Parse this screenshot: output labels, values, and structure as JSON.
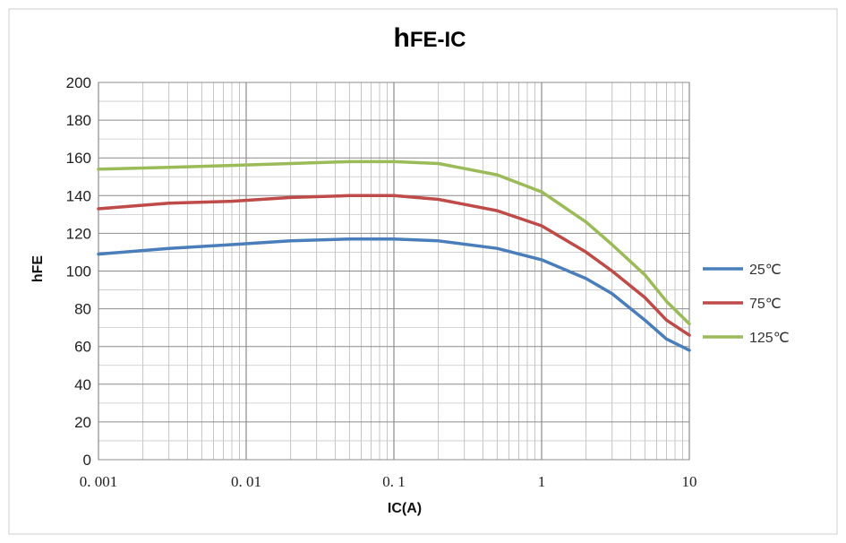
{
  "chart_data": {
    "type": "line",
    "title": "hFE-IC",
    "title_main": "h",
    "title_sub": "FE-IC",
    "xlabel": "IC(A)",
    "ylabel": "hFE",
    "x_scale": "log",
    "xlim": [
      0.001,
      10
    ],
    "ylim": [
      0,
      200
    ],
    "y_ticks": [
      0,
      20,
      40,
      60,
      80,
      100,
      120,
      140,
      160,
      180,
      200
    ],
    "x_ticks": [
      "0. 001",
      "0. 01",
      "0. 1",
      "1",
      "10"
    ],
    "grid": true,
    "legend_position": "right",
    "series": [
      {
        "name": "25℃",
        "color": "#4a7ebb",
        "x": [
          0.001,
          0.003,
          0.008,
          0.02,
          0.05,
          0.08,
          0.1,
          0.2,
          0.5,
          1,
          2,
          3,
          5,
          7,
          10
        ],
        "y": [
          109,
          112,
          114,
          116,
          117,
          117,
          117,
          116,
          112,
          106,
          96,
          88,
          74,
          64,
          58
        ]
      },
      {
        "name": "75℃",
        "color": "#be4b48",
        "x": [
          0.001,
          0.003,
          0.008,
          0.02,
          0.05,
          0.08,
          0.1,
          0.2,
          0.5,
          1,
          2,
          3,
          5,
          7,
          10
        ],
        "y": [
          133,
          136,
          137,
          139,
          140,
          140,
          140,
          138,
          132,
          124,
          110,
          100,
          86,
          74,
          66
        ]
      },
      {
        "name": "125℃",
        "color": "#9bbb59",
        "x": [
          0.001,
          0.003,
          0.008,
          0.02,
          0.05,
          0.08,
          0.1,
          0.2,
          0.5,
          1,
          2,
          3,
          5,
          7,
          10
        ],
        "y": [
          154,
          155,
          156,
          157,
          158,
          158,
          158,
          157,
          151,
          142,
          126,
          114,
          98,
          84,
          72
        ]
      }
    ]
  }
}
